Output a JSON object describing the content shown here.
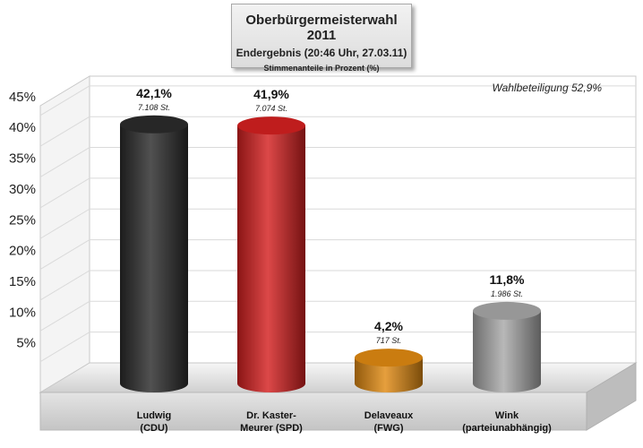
{
  "header": {
    "title": "Oberbürgermeisterwahl 2011",
    "subtitle": "Endergebnis (20:46 Uhr, 27.03.11)",
    "note": "Stimmenanteile in Prozent (%)"
  },
  "chart_data": {
    "type": "bar",
    "title": "Oberbürgermeisterwahl 2011",
    "subtitle": "Endergebnis (20:46 Uhr, 27.03.11)",
    "ylabel": "Stimmenanteile in Prozent (%)",
    "annotation": "Wahlbeteiligung 52,9%",
    "ylim": [
      0,
      45
    ],
    "yticks": [
      "5%",
      "10%",
      "15%",
      "20%",
      "25%",
      "30%",
      "35%",
      "40%",
      "45%"
    ],
    "categories": [
      {
        "line1": "Ludwig",
        "line2": "(CDU)"
      },
      {
        "line1": "Dr. Kaster-",
        "line2": "Meurer (SPD)"
      },
      {
        "line1": "Delaveaux",
        "line2": "(FWG)"
      },
      {
        "line1": "Wink",
        "line2": "(parteiunabhängig)"
      }
    ],
    "values": [
      42.1,
      41.9,
      4.2,
      11.8
    ],
    "value_labels": [
      "42,1%",
      "41,9%",
      "4,2%",
      "11,8%"
    ],
    "vote_labels": [
      "7.108 St.",
      "7.074 St.",
      "717 St.",
      "1.986 St."
    ],
    "colors": [
      "#2b2b2b",
      "#d42020",
      "#e08a12",
      "#a8a8a8"
    ]
  }
}
